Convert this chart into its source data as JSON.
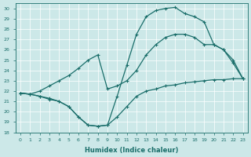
{
  "xlabel": "Humidex (Indice chaleur)",
  "ylabel": "",
  "xlim": [
    -0.5,
    23.5
  ],
  "ylim": [
    18,
    30.5
  ],
  "yticks": [
    18,
    19,
    20,
    21,
    22,
    23,
    24,
    25,
    26,
    27,
    28,
    29,
    30
  ],
  "xticks": [
    0,
    1,
    2,
    3,
    4,
    5,
    6,
    7,
    8,
    9,
    10,
    11,
    12,
    13,
    14,
    15,
    16,
    17,
    18,
    19,
    20,
    21,
    22,
    23
  ],
  "bg_color": "#cce8e8",
  "line_color": "#1a6e6a",
  "grid_color": "#ffffff",
  "curve_bottom_x": [
    0,
    1,
    2,
    3,
    4,
    5,
    6,
    7,
    8,
    9,
    10,
    11,
    12,
    13,
    14,
    15,
    16,
    17,
    18,
    19,
    20,
    21,
    22,
    23
  ],
  "curve_bottom_y": [
    21.8,
    21.7,
    21.5,
    21.3,
    21.0,
    20.5,
    19.5,
    18.7,
    18.6,
    18.7,
    19.5,
    20.5,
    21.5,
    22.0,
    22.2,
    22.5,
    22.6,
    22.8,
    22.9,
    23.0,
    23.1,
    23.1,
    23.2,
    23.2
  ],
  "curve_mid_x": [
    0,
    1,
    2,
    3,
    4,
    5,
    6,
    7,
    8,
    9,
    10,
    11,
    12,
    13,
    14,
    15,
    16,
    17,
    18,
    19,
    20,
    21,
    22,
    23
  ],
  "curve_mid_y": [
    21.8,
    21.7,
    22.0,
    22.5,
    23.0,
    23.5,
    24.2,
    25.0,
    25.5,
    22.2,
    22.5,
    23.0,
    24.0,
    25.5,
    26.5,
    27.2,
    27.5,
    27.5,
    27.2,
    26.5,
    26.5,
    26.0,
    25.0,
    23.2
  ],
  "curve_top_x": [
    0,
    1,
    2,
    3,
    4,
    5,
    6,
    7,
    8,
    9,
    10,
    11,
    12,
    13,
    14,
    15,
    16,
    17,
    18,
    19,
    20,
    21,
    22,
    23
  ],
  "curve_top_y": [
    21.8,
    21.7,
    21.5,
    21.2,
    21.0,
    20.5,
    19.5,
    18.7,
    18.6,
    18.7,
    21.5,
    24.5,
    27.5,
    29.2,
    29.8,
    30.0,
    30.1,
    29.5,
    29.2,
    28.7,
    26.5,
    26.0,
    24.7,
    23.2
  ]
}
